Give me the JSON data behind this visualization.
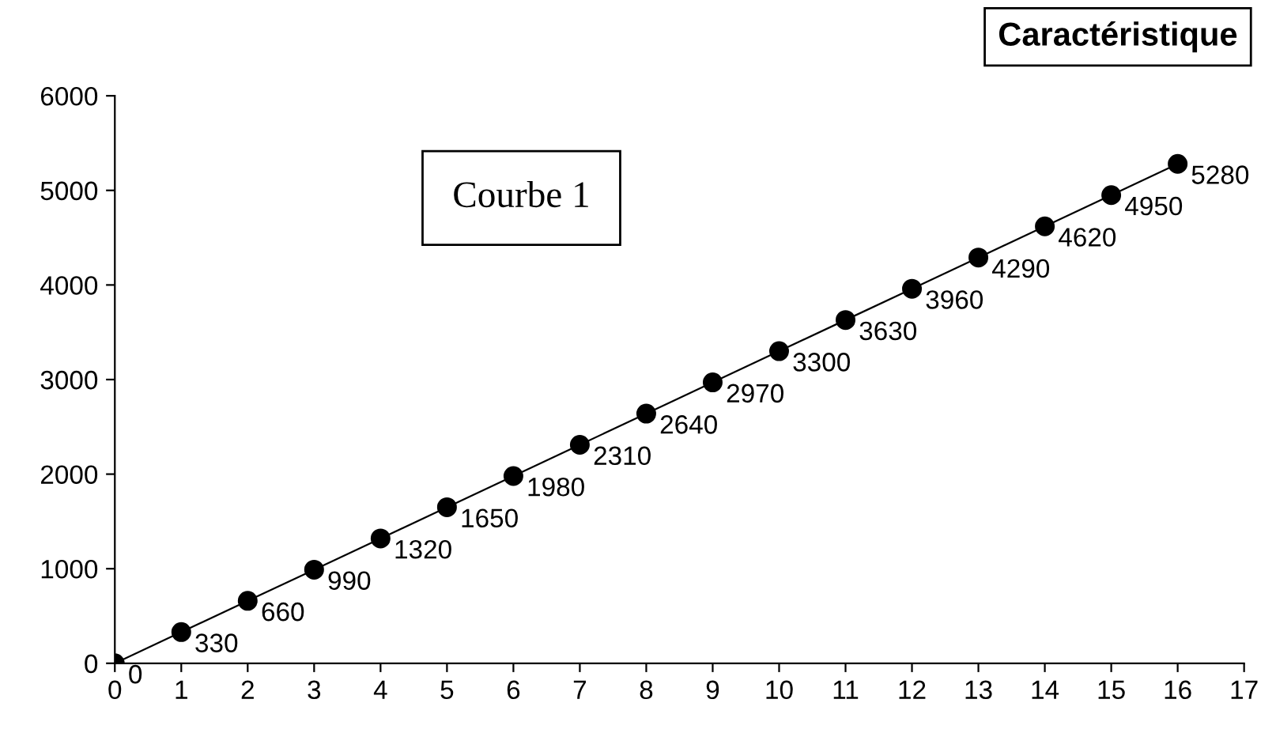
{
  "chart_data": {
    "type": "line",
    "title": "Caractéristique",
    "annotations": [
      "Courbe 1"
    ],
    "x": [
      0,
      1,
      2,
      3,
      4,
      5,
      6,
      7,
      8,
      9,
      10,
      11,
      12,
      13,
      14,
      15,
      16
    ],
    "series": [
      {
        "color": "#000000",
        "values": [
          0,
          330,
          660,
          990,
          1320,
          1650,
          1980,
          2310,
          2640,
          2970,
          3300,
          3630,
          3960,
          4290,
          4620,
          4950,
          5280
        ]
      }
    ],
    "data_labels": true,
    "marker": "circle",
    "line_style": "solid",
    "xlim": [
      0,
      17
    ],
    "xticks": [
      0,
      1,
      2,
      3,
      4,
      5,
      6,
      7,
      8,
      9,
      10,
      11,
      12,
      13,
      14,
      15,
      16,
      17
    ],
    "ylim": [
      0,
      6000
    ],
    "yticks": [
      0,
      1000,
      2000,
      3000,
      4000,
      5000,
      6000
    ],
    "grid": false,
    "legend": false
  }
}
